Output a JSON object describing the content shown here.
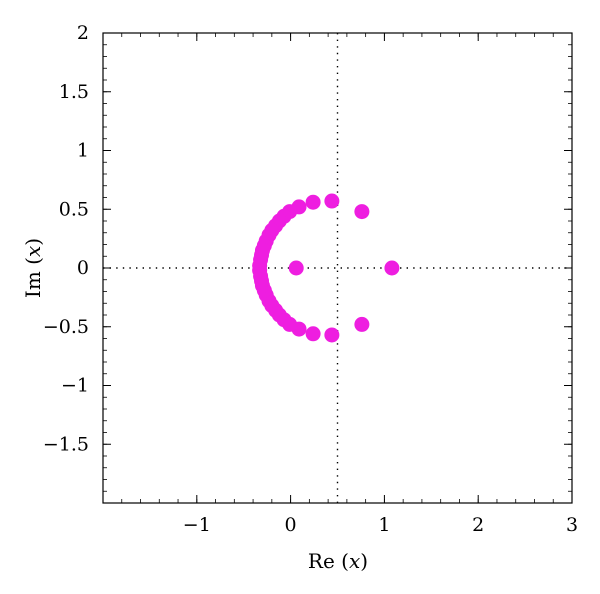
{
  "chart_data": {
    "type": "scatter",
    "xlabel": {
      "prefix": "Re",
      "open": "(",
      "var": "x",
      "close": ")"
    },
    "ylabel": {
      "prefix": "Im",
      "open": "(",
      "var": "x",
      "close": ")"
    },
    "xlim": [
      -2,
      3
    ],
    "ylim": [
      -2,
      2
    ],
    "x_ticks": [
      -1,
      0,
      1,
      2,
      3
    ],
    "x_tick_labels": [
      "−1",
      "0",
      "1",
      "2",
      "3"
    ],
    "y_ticks": [
      -1.5,
      -1,
      -0.5,
      0,
      0.5,
      1,
      1.5,
      2
    ],
    "y_tick_labels": [
      "−1.5",
      "−1",
      "−0.5",
      "0",
      "0.5",
      "1",
      "1.5",
      "2"
    ],
    "reference_lines": {
      "vertical_x": 0.5,
      "horizontal_y": 0
    },
    "grid": false,
    "marker_color": "#ee1ee0",
    "points": [
      [
        1.08,
        0
      ],
      [
        0.76,
        0.48
      ],
      [
        0.76,
        -0.48
      ],
      [
        0.06,
        0
      ],
      [
        0.44,
        0.57
      ],
      [
        0.44,
        -0.57
      ],
      [
        0.24,
        0.56
      ],
      [
        0.24,
        -0.56
      ],
      [
        0.09,
        0.52
      ],
      [
        0.09,
        -0.52
      ],
      [
        -0.01,
        0.48
      ],
      [
        -0.01,
        -0.48
      ],
      [
        -0.07,
        0.44
      ],
      [
        -0.07,
        -0.44
      ],
      [
        -0.12,
        0.4
      ],
      [
        -0.12,
        -0.4
      ],
      [
        -0.16,
        0.36
      ],
      [
        -0.16,
        -0.36
      ],
      [
        -0.2,
        0.32
      ],
      [
        -0.2,
        -0.32
      ],
      [
        -0.23,
        0.28
      ],
      [
        -0.23,
        -0.28
      ],
      [
        -0.26,
        0.23
      ],
      [
        -0.26,
        -0.23
      ],
      [
        -0.28,
        0.19
      ],
      [
        -0.28,
        -0.19
      ],
      [
        -0.3,
        0.15
      ],
      [
        -0.3,
        -0.15
      ],
      [
        -0.31,
        0.11
      ],
      [
        -0.31,
        -0.11
      ],
      [
        -0.32,
        0.07
      ],
      [
        -0.32,
        -0.07
      ],
      [
        -0.33,
        0.02
      ],
      [
        -0.33,
        -0.02
      ]
    ]
  }
}
